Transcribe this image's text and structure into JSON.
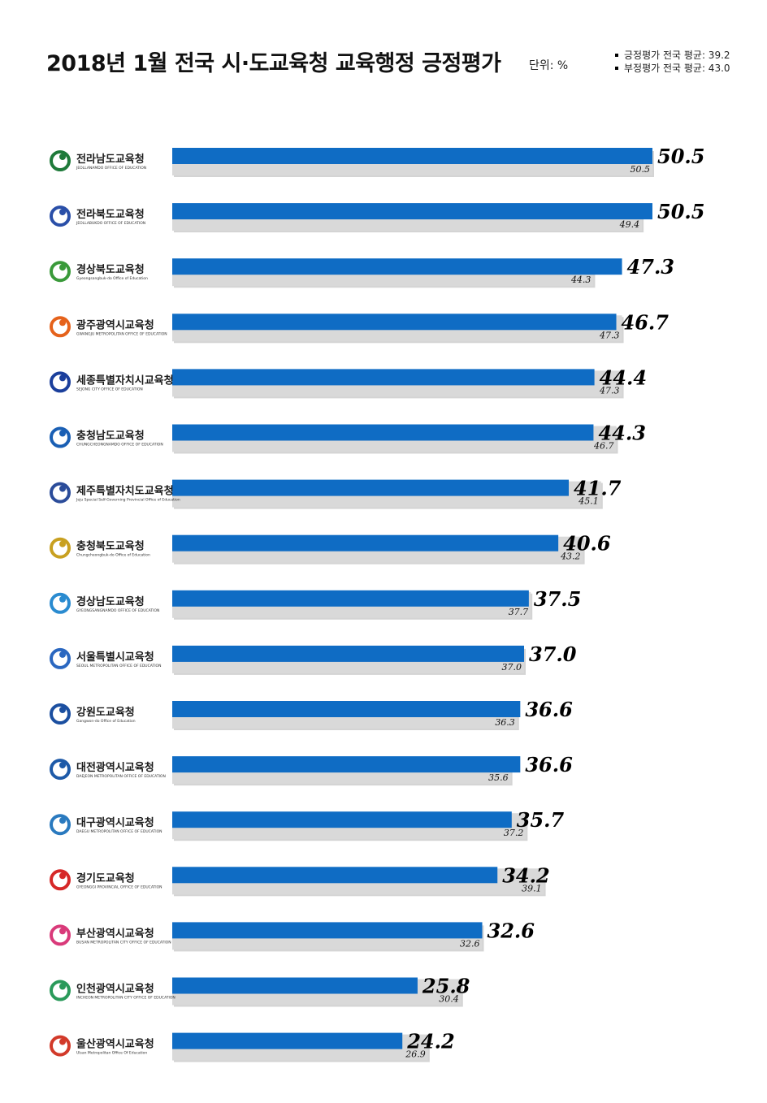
{
  "title": "2018년 1월 전국 시·도교육청 교육행정 긍정평가",
  "unit": "단위: %",
  "legend": {
    "positive_avg": "긍정평가 전국 평균: 39.2",
    "negative_avg": "부정평가 전국 평균: 43.0"
  },
  "colors": {
    "positive": "#0f6cc4",
    "negative": "#d9d9d9"
  },
  "chart_data": {
    "type": "bar",
    "orientation": "horizontal",
    "categories": [
      "전라남도교육청",
      "전라북도교육청",
      "경상북도교육청",
      "광주광역시교육청",
      "세종특별자치시교육청",
      "충청남도교육청",
      "제주특별자치도교육청",
      "충청북도교육청",
      "경상남도교육청",
      "서울특별시교육청",
      "강원도교육청",
      "대전광역시교육청",
      "대구광역시교육청",
      "경기도교육청",
      "부산광역시교육청",
      "인천광역시교육청",
      "울산광역시교육청"
    ],
    "logo_sub": [
      "JEOLLANAMDO OFFICE OF EDUCATION",
      "JEOLLABUKDO OFFICE OF EDUCATION",
      "Gyeongsangbuk-do Office of Education",
      "GWANGJU METROPOLITAN OFFICE OF EDUCATION",
      "SEJONG CITY OFFICE OF EDUCATION",
      "CHUNGCHEONGNAMDO OFFICE OF EDUCATION",
      "Jeju Special Self-Governing Provincial Office of Education",
      "Chungcheongbuk-do Office of Education",
      "GYEONGSANGNAMDO OFFICE OF EDUCATION",
      "SEOUL METROPOLITAN OFFICE OF EDUCATION",
      "Gangwon-do Office of Education",
      "DAEJEON METROPOLITAN OFFICE OF EDUCATION",
      "DAEGU METROPOLITAN OFFICE OF EDUCATION",
      "GYEONGGI PROVINCIAL OFFICE OF EDUCATION",
      "BUSAN METROPOLITAN CITY OFFICE OF EDUCATION",
      "INCHEON METROPOLITAN CITY OFFICE OF EDUCATION",
      "Ulsan Metropolitan Office Of Education"
    ],
    "logo_colors": [
      "#1f7a3a",
      "#2a4fa8",
      "#3a9a3a",
      "#e5621b",
      "#1b3f9c",
      "#1a5fb4",
      "#2b4c9a",
      "#c8a020",
      "#2a8bd0",
      "#2a67c0",
      "#1b4fa0",
      "#1e5aa8",
      "#2a7abf",
      "#d62828",
      "#d93a7a",
      "#2a9a5a",
      "#d23a2a"
    ],
    "series": [
      {
        "values": [
          50.5,
          50.5,
          47.3,
          46.7,
          44.4,
          44.3,
          41.7,
          40.6,
          37.5,
          37.0,
          36.6,
          36.6,
          35.7,
          34.2,
          32.6,
          25.8,
          24.2
        ]
      },
      {
        "values": [
          50.5,
          49.4,
          44.3,
          47.3,
          47.3,
          46.7,
          45.1,
          43.2,
          37.7,
          37.0,
          36.3,
          35.6,
          37.2,
          39.1,
          32.6,
          30.4,
          26.9
        ]
      }
    ],
    "positive_labels": [
      "50.5",
      "50.5",
      "47.3",
      "46.7",
      "44.4",
      "44.3",
      "41.7",
      "40.6",
      "37.5",
      "37.0",
      "36.6",
      "36.6",
      "35.7",
      "34.2",
      "32.6",
      "25.8",
      "24.2"
    ],
    "negative_labels": [
      "50.5",
      "49.4",
      "44.3",
      "47.3",
      "47.3",
      "46.7",
      "45.1",
      "43.2",
      "37.7",
      "37.0",
      "36.3",
      "35.6",
      "37.2",
      "39.1",
      "32.6",
      "30.4",
      "26.9"
    ]
  }
}
